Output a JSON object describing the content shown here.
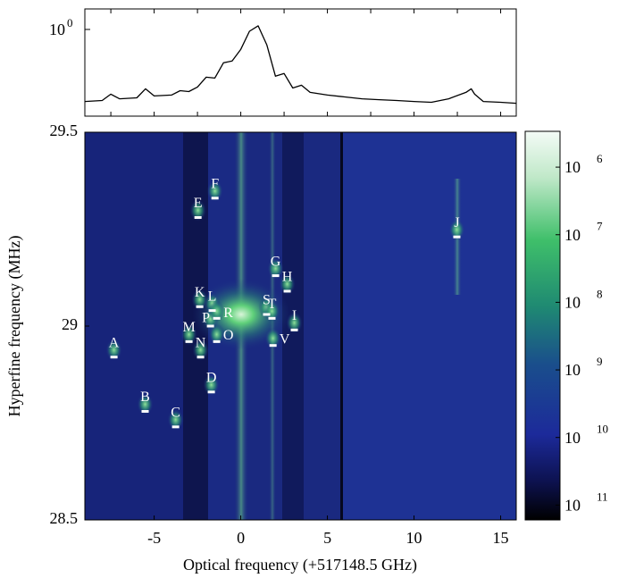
{
  "chart_data": [
    {
      "type": "line",
      "x": [
        -9,
        -8,
        -7.5,
        -7,
        -6,
        -5.5,
        -5,
        -4,
        -3.5,
        -3,
        -2.5,
        -2,
        -1.5,
        -1,
        -0.5,
        0,
        0.5,
        1,
        1.5,
        2,
        2.5,
        3,
        3.5,
        4,
        5,
        6,
        7,
        8,
        9,
        10,
        11,
        12,
        13,
        13.3,
        13.5,
        14,
        15,
        15.9
      ],
      "values": [
        0.398,
        0.403,
        0.437,
        0.412,
        0.417,
        0.468,
        0.427,
        0.432,
        0.457,
        0.452,
        0.479,
        0.543,
        0.537,
        0.653,
        0.668,
        0.776,
        0.977,
        1.047,
        0.822,
        0.55,
        0.569,
        0.473,
        0.49,
        0.447,
        0.432,
        0.422,
        0.412,
        0.407,
        0.403,
        0.398,
        0.394,
        0.412,
        0.447,
        0.468,
        0.437,
        0.398,
        0.394,
        0.389
      ],
      "color": "#000000",
      "xlim": [
        -9,
        15.9
      ],
      "xticks": [
        -7.5,
        -5,
        -2.5,
        0,
        2.5,
        5,
        7.5,
        10,
        12.5,
        15
      ],
      "ylim": [
        0.33,
        1.3
      ],
      "log_y": true,
      "yticks": [
        {
          "value": 1,
          "label": "10",
          "exponent": "0"
        }
      ]
    },
    {
      "type": "heatmap",
      "x_label": "Optical frequency (+517148.5 GHz)",
      "y_label": "Hyperfine frequency (MHz)",
      "xlim": [
        -9,
        15.9
      ],
      "xticks": [
        -5,
        0,
        5,
        10,
        15
      ],
      "ylim": [
        28.5,
        29.5
      ],
      "yticks": [
        28.5,
        29,
        29.5
      ],
      "labels": [
        "A",
        "B",
        "C",
        "D",
        "E",
        "F",
        "G",
        "H",
        "I",
        "J",
        "K",
        "L",
        "M",
        "N",
        "O",
        "P",
        "R",
        "S",
        "T",
        "V"
      ],
      "x": [
        -7.32,
        -5.52,
        -3.76,
        -1.7,
        -2.47,
        -1.49,
        2.01,
        2.68,
        3.09,
        12.47,
        -2.37,
        -1.65,
        -2.99,
        -2.32,
        -1.39,
        -1.75,
        -1.39,
        1.49,
        1.8,
        1.86
      ],
      "y": [
        28.92,
        28.78,
        28.74,
        28.83,
        29.28,
        29.33,
        29.13,
        29.09,
        28.99,
        29.23,
        29.05,
        29.04,
        28.96,
        28.92,
        28.96,
        29.0,
        29.02,
        29.03,
        29.02,
        28.95
      ],
      "marker_color": "#ffffff",
      "colorbar": {
        "clim": [
          5.47,
          11.22
        ],
        "ticks": [
          {
            "value": 6,
            "label": "10",
            "exponent": "6"
          },
          {
            "value": 7,
            "label": "10",
            "exponent": "7"
          },
          {
            "value": 8,
            "label": "10",
            "exponent": "8"
          },
          {
            "value": 9,
            "label": "10",
            "exponent": "9"
          },
          {
            "value": 10,
            "label": "10",
            "exponent": "10"
          },
          {
            "value": 11,
            "label": "10",
            "exponent": "11"
          }
        ]
      }
    }
  ]
}
